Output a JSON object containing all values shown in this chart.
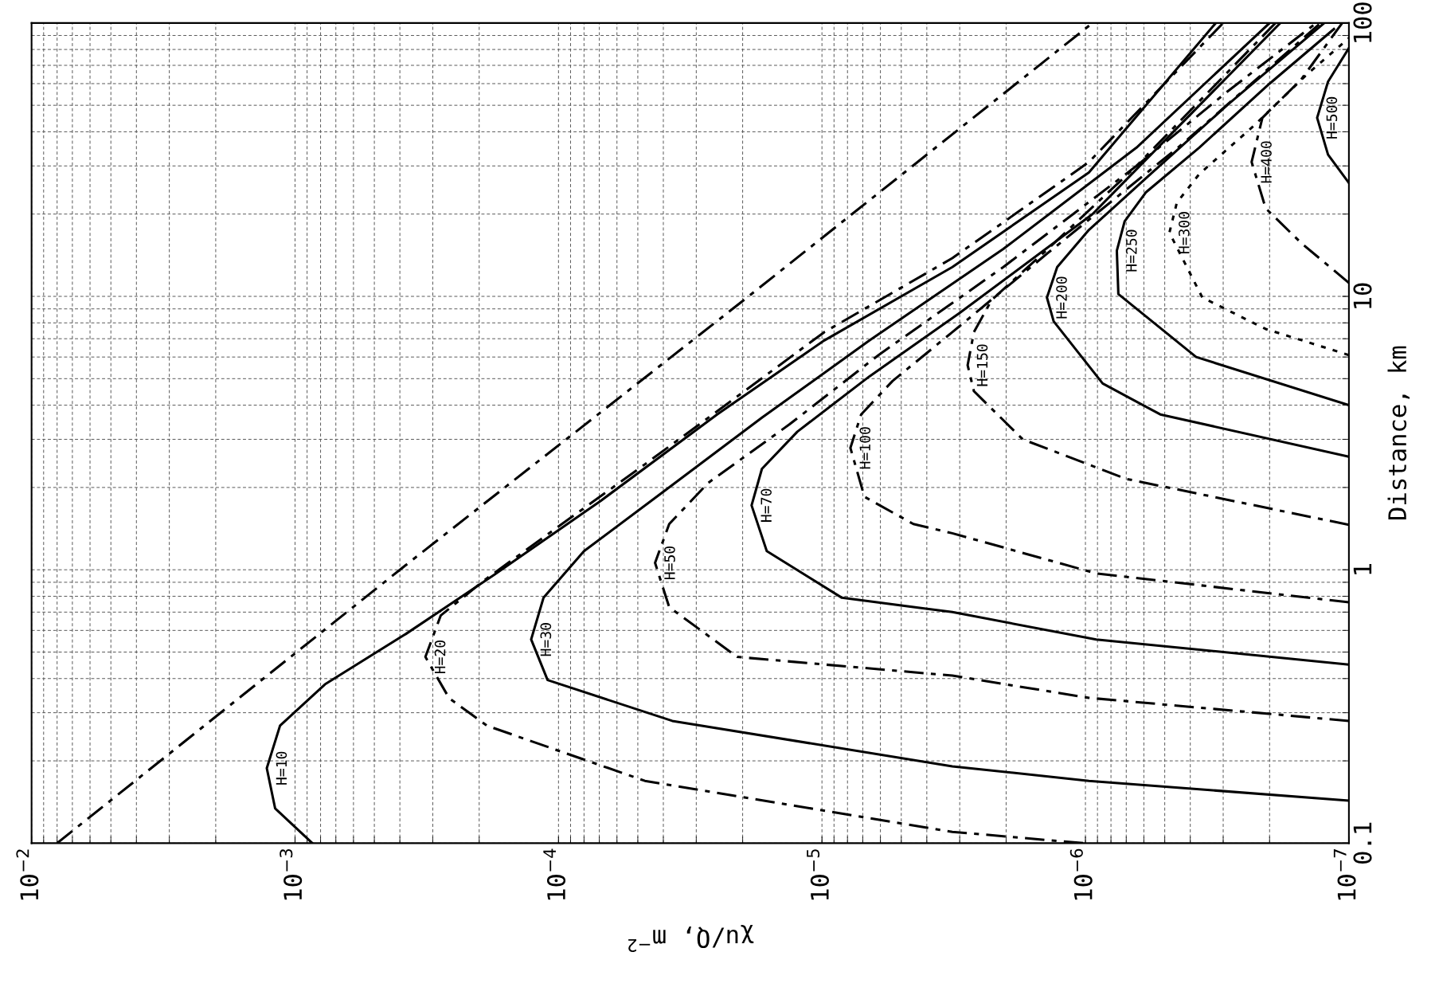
{
  "chart_data": {
    "type": "line",
    "xlabel": "χu/Q, m$^{−2}$",
    "ylabel": "Distance, km",
    "log": "xy",
    "grid": true,
    "xlim": [
      0.01,
      1e-07
    ],
    "ylim": [
      0.1,
      100
    ],
    "xticks": [
      {
        "value": 0.01,
        "label": "10$^{−2}$"
      },
      {
        "value": 0.001,
        "label": "10$^{−3}$"
      },
      {
        "value": 0.0001,
        "label": "10$^{−4}$"
      },
      {
        "value": 1e-05,
        "label": "10$^{−5}$"
      },
      {
        "value": 1e-06,
        "label": "10$^{−6}$"
      },
      {
        "value": 1e-07,
        "label": "10$^{−7}$"
      }
    ],
    "yticks": [
      0.1,
      1,
      10,
      100
    ],
    "series": [
      {
        "color": "#000000",
        "line_style": "dashed",
        "x": [
          0.008,
          0.0004,
          1.9e-05,
          9.4e-07
        ],
        "values": [
          0.1,
          1,
          10,
          100
        ]
      },
      {
        "name": "H=10",
        "color": "#000000",
        "line_style": "solid",
        "x": [
          0.00086,
          0.00119,
          0.00128,
          0.00114,
          0.00077,
          0.00038,
          0.000175,
          6.9e-05,
          2.5e-05,
          9.8e-06,
          3.2e-06,
          9.7e-07,
          3.2e-07
        ],
        "values": [
          0.1,
          0.134,
          0.188,
          0.269,
          0.381,
          0.582,
          0.96,
          1.79,
          3.7,
          6.9,
          12.8,
          28.4,
          100
        ]
      },
      {
        "name": "H=20",
        "color": "#000000",
        "line_style": "dashed",
        "x": [
          1.02e-06,
          3.2e-06,
          4.7e-05,
          0.000187,
          0.00026,
          0.00032,
          0.00028,
          0.00019,
          0.000102,
          4.7e-05,
          2.1e-05,
          9.8e-06,
          3.2e-06,
          9.7e-07,
          3e-07
        ],
        "values": [
          0.1,
          0.11,
          0.169,
          0.269,
          0.339,
          0.48,
          0.68,
          0.92,
          1.42,
          2.43,
          4.3,
          7.4,
          13.8,
          31,
          100
        ]
      },
      {
        "name": "H=30",
        "color": "#000000",
        "line_style": "solid",
        "x": [
          1e-07,
          9.7e-07,
          3.2e-06,
          3.7e-05,
          0.00011,
          0.000127,
          0.000114,
          8e-05,
          4e-05,
          1.69e-05,
          6.6e-06,
          2.05e-06,
          6.4e-07,
          2e-07
        ],
        "values": [
          0.143,
          0.169,
          0.191,
          0.28,
          0.395,
          0.556,
          0.79,
          1.17,
          1.93,
          3.6,
          6.9,
          14.9,
          35,
          100
        ]
      },
      {
        "name": "H=50",
        "color": "#000000",
        "line_style": "dashed",
        "x": [
          1e-07,
          9.7e-07,
          3.2e-06,
          2.1e-05,
          3.8e-05,
          4.3e-05,
          3.8e-05,
          2.7e-05,
          1.33e-05,
          6.1e-06,
          2.05e-06,
          6.4e-07,
          1.9e-07
        ],
        "values": [
          0.28,
          0.34,
          0.41,
          0.48,
          0.73,
          1.06,
          1.47,
          2.08,
          3.4,
          6.1,
          12.8,
          30,
          100
        ]
      },
      {
        "name": "H=70",
        "color": "#000000",
        "line_style": "solid",
        "x": [
          1e-07,
          9.1e-07,
          3.2e-06,
          8.4e-06,
          1.62e-05,
          1.85e-05,
          1.69e-05,
          1.24e-05,
          6.6e-06,
          3e-06,
          9.4e-07,
          1.82e-07
        ],
        "values": [
          0.45,
          0.556,
          0.7,
          0.79,
          1.17,
          1.72,
          2.34,
          3.2,
          5.1,
          8.7,
          20,
          100
        ]
      },
      {
        "name": "H=100",
        "color": "#000000",
        "line_style": "dashed",
        "x": [
          1e-07,
          9.1e-07,
          3.2e-06,
          4.5e-06,
          6.9e-06,
          7.8e-06,
          7.1e-06,
          5.4e-06,
          3.2e-06,
          1.39e-06,
          4.3e-07,
          1.28e-07
        ],
        "values": [
          0.76,
          0.97,
          1.36,
          1.47,
          1.85,
          2.79,
          3.7,
          4.9,
          7.4,
          14.4,
          36,
          100
        ]
      },
      {
        "name": "H=150",
        "color": "#000000",
        "line_style": "dashed",
        "x": [
          1e-07,
          7e-07,
          1.73e-06,
          2.65e-06,
          2.8e-06,
          2.65e-06,
          2.27e-06,
          1.39e-06,
          6.4e-07,
          2.9e-07,
          1.33e-07
        ],
        "values": [
          1.46,
          2.15,
          3.0,
          4.5,
          5.6,
          7.4,
          9.7,
          14.9,
          30,
          56,
          100
        ]
      },
      {
        "name": "H=200",
        "color": "#000000",
        "line_style": "solid",
        "x": [
          1e-07,
          5.2e-07,
          8.6e-07,
          1.32e-06,
          1.4e-06,
          1.28e-06,
          9.7e-07,
          5.9e-07,
          2.9e-07,
          1.24e-07
        ],
        "values": [
          2.59,
          3.7,
          4.8,
          8.1,
          9.9,
          12.8,
          17.5,
          27,
          50,
          100
        ]
      },
      {
        "name": "H=250",
        "color": "#000000",
        "line_style": "solid",
        "x": [
          1e-07,
          3.8e-07,
          7.5e-07,
          7.6e-07,
          7.1e-07,
          5.9e-07,
          3.7e-07,
          2e-07,
          1.14e-07
        ],
        "values": [
          4.0,
          6.0,
          10.2,
          14.7,
          18.8,
          24,
          35,
          60,
          95
        ]
      },
      {
        "name": "H=300",
        "color": "#000000",
        "line_style": "dotted",
        "x": [
          1e-07,
          2.07e-07,
          3.6e-07,
          4.8e-07,
          4.5e-07,
          3.7e-07,
          2.3e-07,
          1.44e-07,
          1e-07
        ],
        "values": [
          6.1,
          7.6,
          9.9,
          17.1,
          22,
          28,
          42,
          65,
          88
        ]
      },
      {
        "name": "H=400",
        "color": "#000000",
        "line_style": "dashed",
        "x": [
          1e-07,
          1.52e-07,
          2.07e-07,
          2.34e-07,
          2.13e-07,
          1.52e-07,
          1.06e-07
        ],
        "values": [
          11.2,
          15.7,
          21,
          31,
          45,
          62,
          100
        ]
      },
      {
        "name": "H=500",
        "color": "#000000",
        "line_style": "solid",
        "x": [
          1e-07,
          1.2e-07,
          1.32e-07,
          1.2e-07,
          1e-07
        ],
        "values": [
          26,
          33,
          45,
          61,
          81
        ]
      }
    ]
  }
}
